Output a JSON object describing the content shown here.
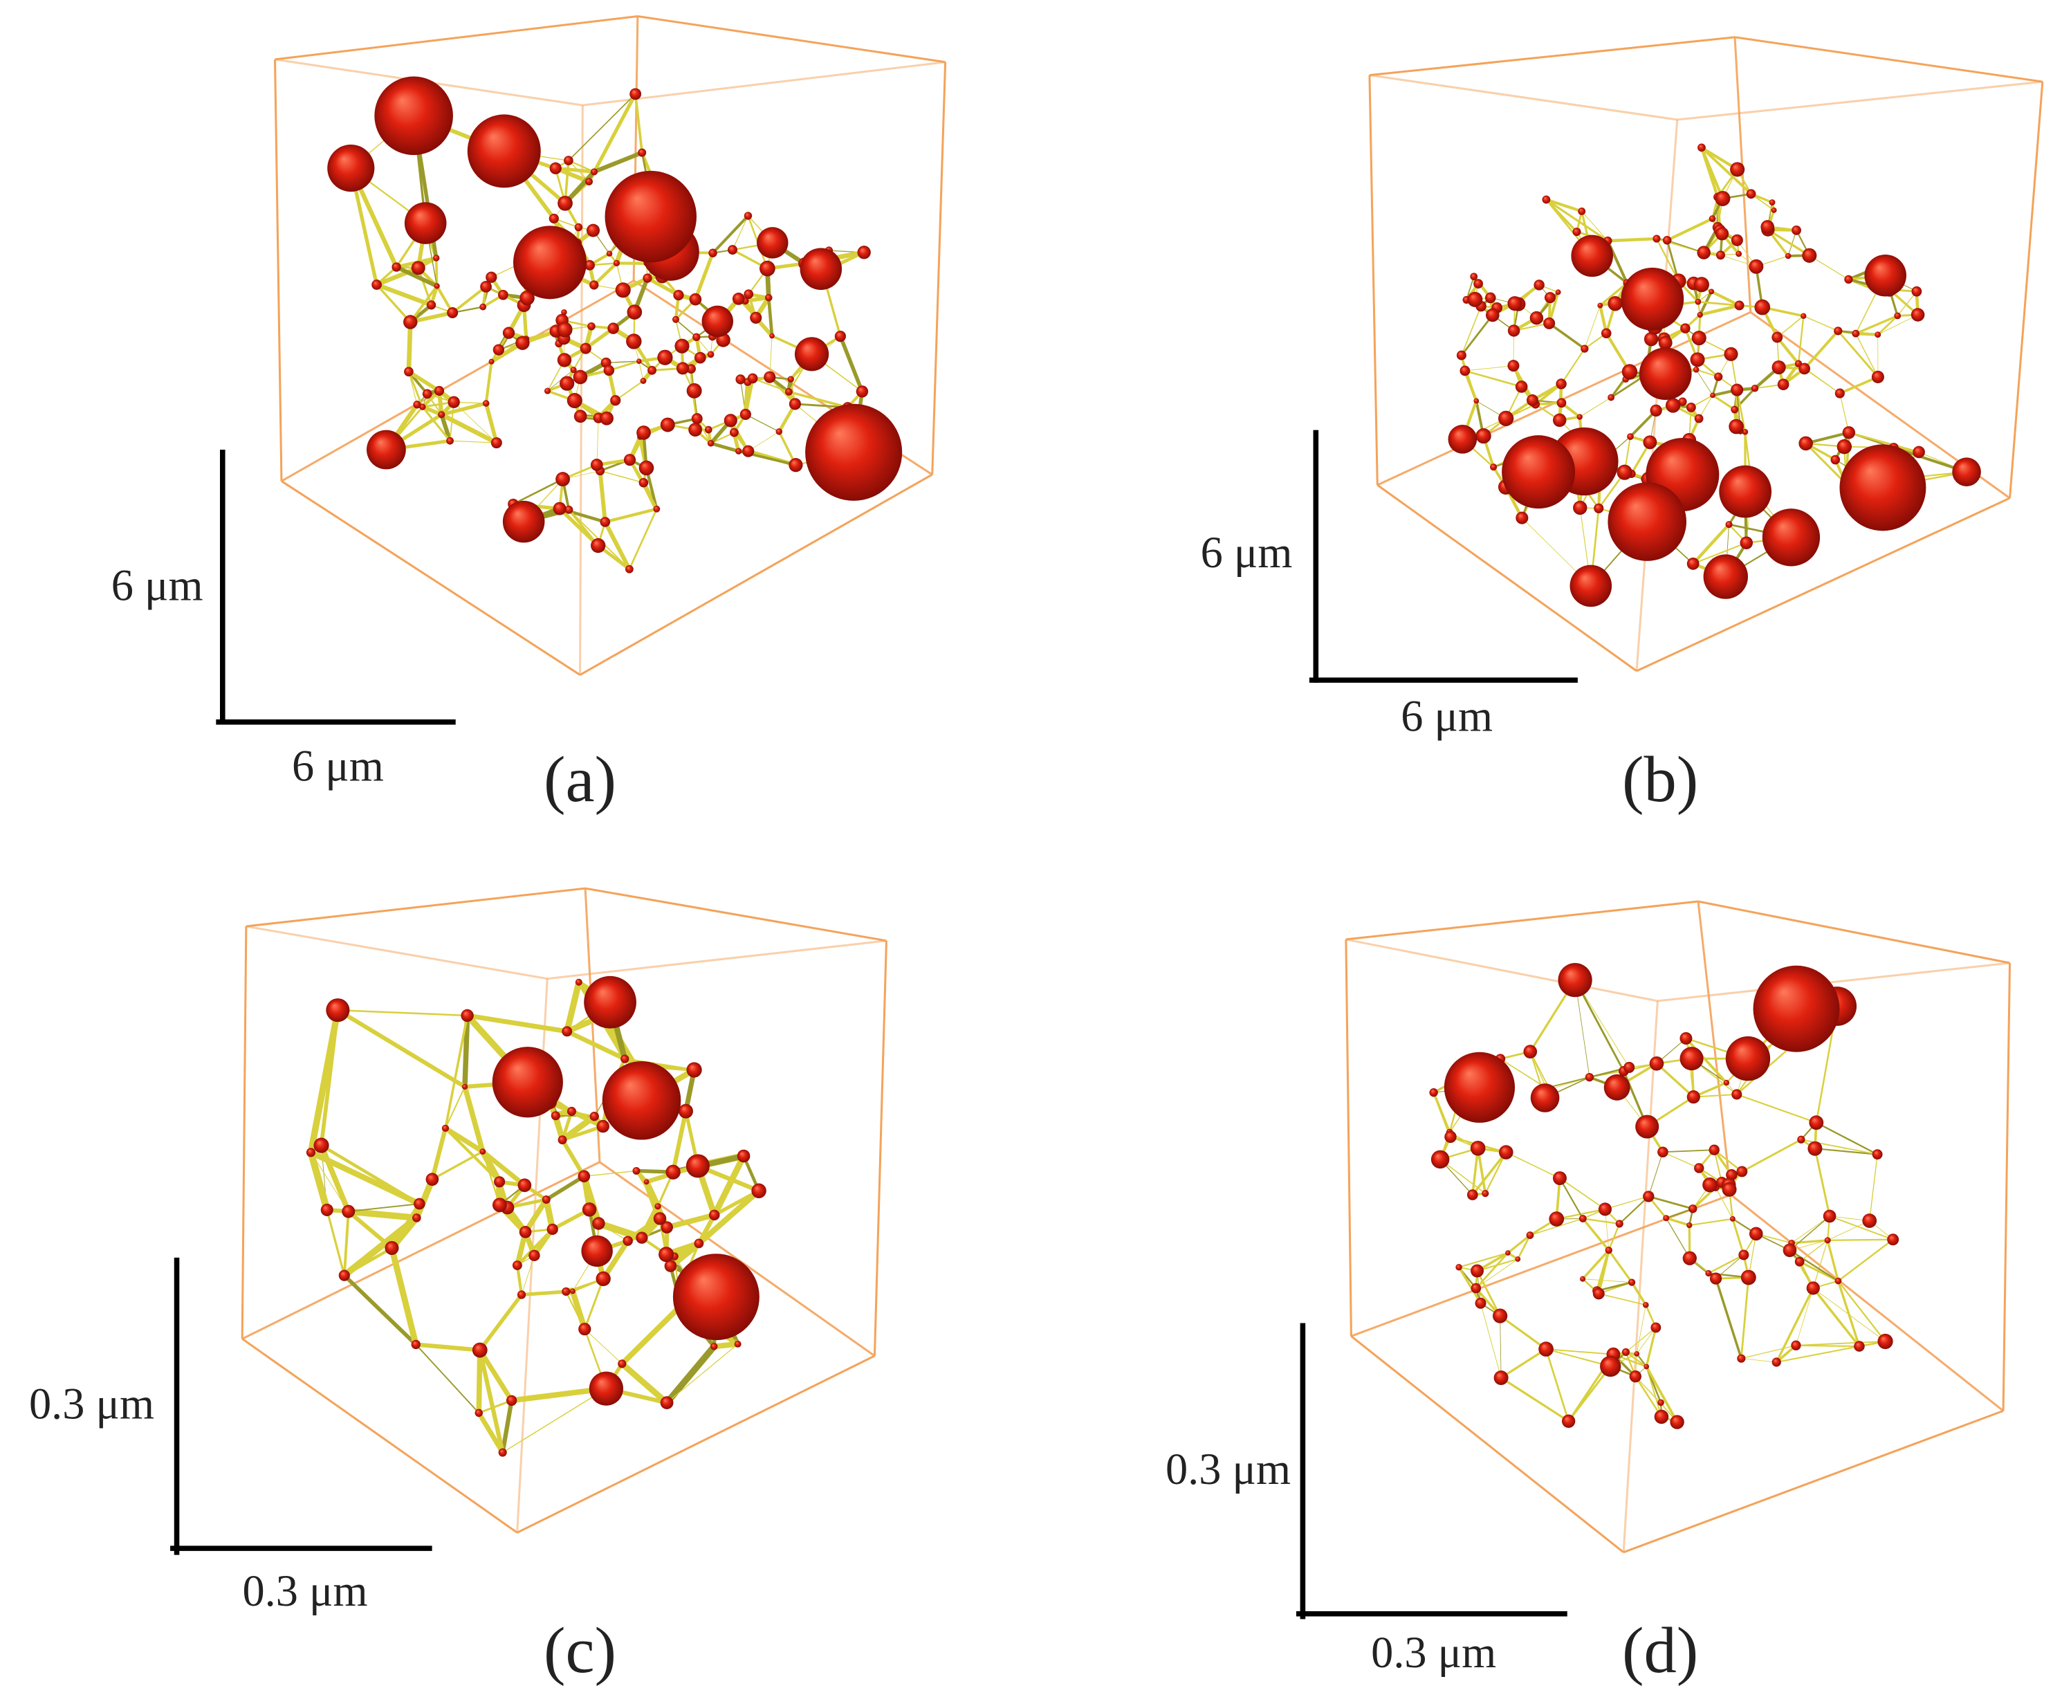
{
  "panels": [
    {
      "label": "(a)",
      "scale_y": "6 μm",
      "scale_x": "6 μm"
    },
    {
      "label": "(b)",
      "scale_y": "6 μm",
      "scale_x": "6 μm"
    },
    {
      "label": "(c)",
      "scale_y": "0.3 μm",
      "scale_x": "0.3 μm"
    },
    {
      "label": "(d)",
      "scale_y": "0.3 μm",
      "scale_x": "0.3 μm"
    }
  ]
}
